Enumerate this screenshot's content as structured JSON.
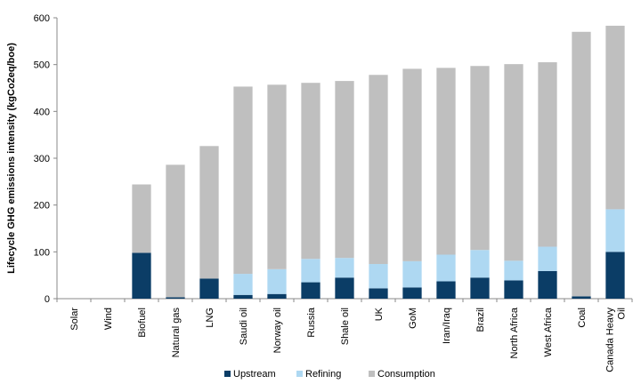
{
  "chart_data": {
    "type": "bar",
    "stacked": true,
    "categories": [
      "Solar",
      "Wind",
      "Biofuel",
      "Natural gas",
      "LNG",
      "Saudi oil",
      "Norway oil",
      "Russia",
      "Shale oil",
      "UK",
      "GoM",
      "Iran/Iraq",
      "Brazil",
      "North Africa",
      "West Africa",
      "Coal",
      "Canada Heavy Oil"
    ],
    "series": [
      {
        "name": "Upstream",
        "color": "#0b3d66",
        "values": [
          0,
          0,
          98,
          3,
          43,
          8,
          10,
          35,
          45,
          22,
          24,
          37,
          45,
          39,
          59,
          5,
          100
        ]
      },
      {
        "name": "Refining",
        "color": "#aed8f2",
        "values": [
          0,
          0,
          0,
          0,
          0,
          45,
          53,
          50,
          42,
          52,
          56,
          57,
          59,
          42,
          52,
          0,
          91
        ]
      },
      {
        "name": "Consumption",
        "color": "#bfbfbf",
        "values": [
          0,
          0,
          146,
          283,
          283,
          400,
          394,
          376,
          378,
          404,
          411,
          399,
          393,
          420,
          394,
          565,
          392
        ]
      }
    ],
    "ylabel": "Lifecycle GHG emissions intensity (kgCo2eq/boe)",
    "ylim": [
      0,
      600
    ],
    "yticks": [
      0,
      100,
      200,
      300,
      400,
      500,
      600
    ],
    "grid": false,
    "legend_position": "bottom"
  }
}
